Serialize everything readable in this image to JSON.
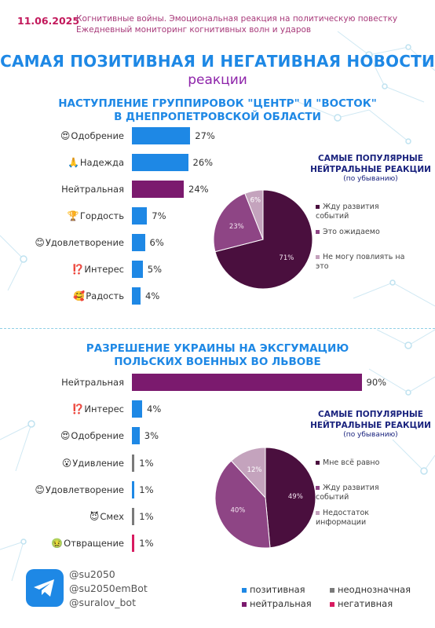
{
  "header": {
    "date": "11.06.2025",
    "subtitle_line1": "Когнитивные войны. Эмоциональная реакция на политическую повестку",
    "subtitle_line2": "Ежедневный мониторинг когнитивных волн и ударов"
  },
  "title": {
    "line1": "САМАЯ ПОЗИТИВНАЯ И НЕГАТИВНАЯ НОВОСТИ",
    "line2": "реакции"
  },
  "colors": {
    "positive": "#1e88e5",
    "neutral": "#7b1a6e",
    "ambiguous": "#7a7a7a",
    "negative": "#d81b60"
  },
  "section1": {
    "title_line1": "НАСТУПЛЕНИЕ ГРУППИРОВОК \"ЦЕНТР\" И \"ВОСТОК\"",
    "title_line2": "В ДНЕПРОПЕТРОВСКОЙ ОБЛАСТИ"
  },
  "section2": {
    "title_line1": "РАЗРЕШЕНИЕ УКРАИНЫ НА ЭКСГУМАЦИЮ",
    "title_line2": "ПОЛЬСКИХ ВОЕННЫХ ВО ЛЬВОВЕ"
  },
  "chart_data": [
    {
      "type": "bar",
      "orientation": "horizontal",
      "categories": [
        "Одобрение",
        "Надежда",
        "Нейтральная",
        "Гордость",
        "Удовлетворение",
        "Интерес",
        "Радость"
      ],
      "icons": [
        "😍",
        "🙏",
        "",
        "🏆",
        "😊",
        "⁉️",
        "🥰"
      ],
      "values": [
        27,
        26,
        24,
        7,
        6,
        5,
        4
      ],
      "value_labels": [
        "27%",
        "26%",
        "24%",
        "7%",
        "6%",
        "5%",
        "4%"
      ],
      "classes": [
        "positive",
        "positive",
        "neutral",
        "positive",
        "positive",
        "positive",
        "positive"
      ],
      "unit": "%"
    },
    {
      "type": "pie",
      "title_line1": "САМЫЕ ПОПУЛЯРНЫЕ",
      "title_line2": "НЕЙТРАЛЬНЫЕ РЕАКЦИИ",
      "title_sub": "(по убыванию)",
      "labels": [
        "Жду развития событий",
        "Это ожидаемо",
        "Не могу повлиять на это"
      ],
      "values": [
        71,
        23,
        6
      ],
      "value_labels": [
        "71%",
        "23%",
        "6%"
      ],
      "colors": [
        "#4a0f3e",
        "#8e4585",
        "#c4a3bd"
      ]
    },
    {
      "type": "bar",
      "orientation": "horizontal",
      "categories": [
        "Нейтральная",
        "Интерес",
        "Одобрение",
        "Удивление",
        "Удовлетворение",
        "Смех",
        "Отвращение"
      ],
      "icons": [
        "",
        "⁉️",
        "😍",
        "😮",
        "😊",
        "😈",
        "🤢"
      ],
      "values": [
        90,
        4,
        3,
        1,
        1,
        1,
        1
      ],
      "value_labels": [
        "90%",
        "4%",
        "3%",
        "1%",
        "1%",
        "1%",
        "1%"
      ],
      "classes": [
        "neutral",
        "positive",
        "positive",
        "ambiguous",
        "positive",
        "ambiguous",
        "negative"
      ],
      "unit": "%"
    },
    {
      "type": "pie",
      "title_line1": "САМЫЕ ПОПУЛЯРНЫЕ",
      "title_line2": "НЕЙТРАЛЬНЫЕ РЕАКЦИИ",
      "title_sub": "(по убыванию)",
      "labels": [
        "Мне всё равно",
        "Жду развития событий",
        "Недостаток информации"
      ],
      "values": [
        49,
        40,
        12
      ],
      "value_labels": [
        "49%",
        "40%",
        "12%"
      ],
      "colors": [
        "#4a0f3e",
        "#8e4585",
        "#c4a3bd"
      ]
    }
  ],
  "social": {
    "icon": "telegram-icon",
    "links": [
      "@su2050",
      "@su2050emBot",
      "@suralov_bot"
    ]
  },
  "legend": {
    "positive": "позитивная",
    "ambiguous": "неоднозначная",
    "neutral": "нейтральная",
    "negative": "негативная"
  }
}
